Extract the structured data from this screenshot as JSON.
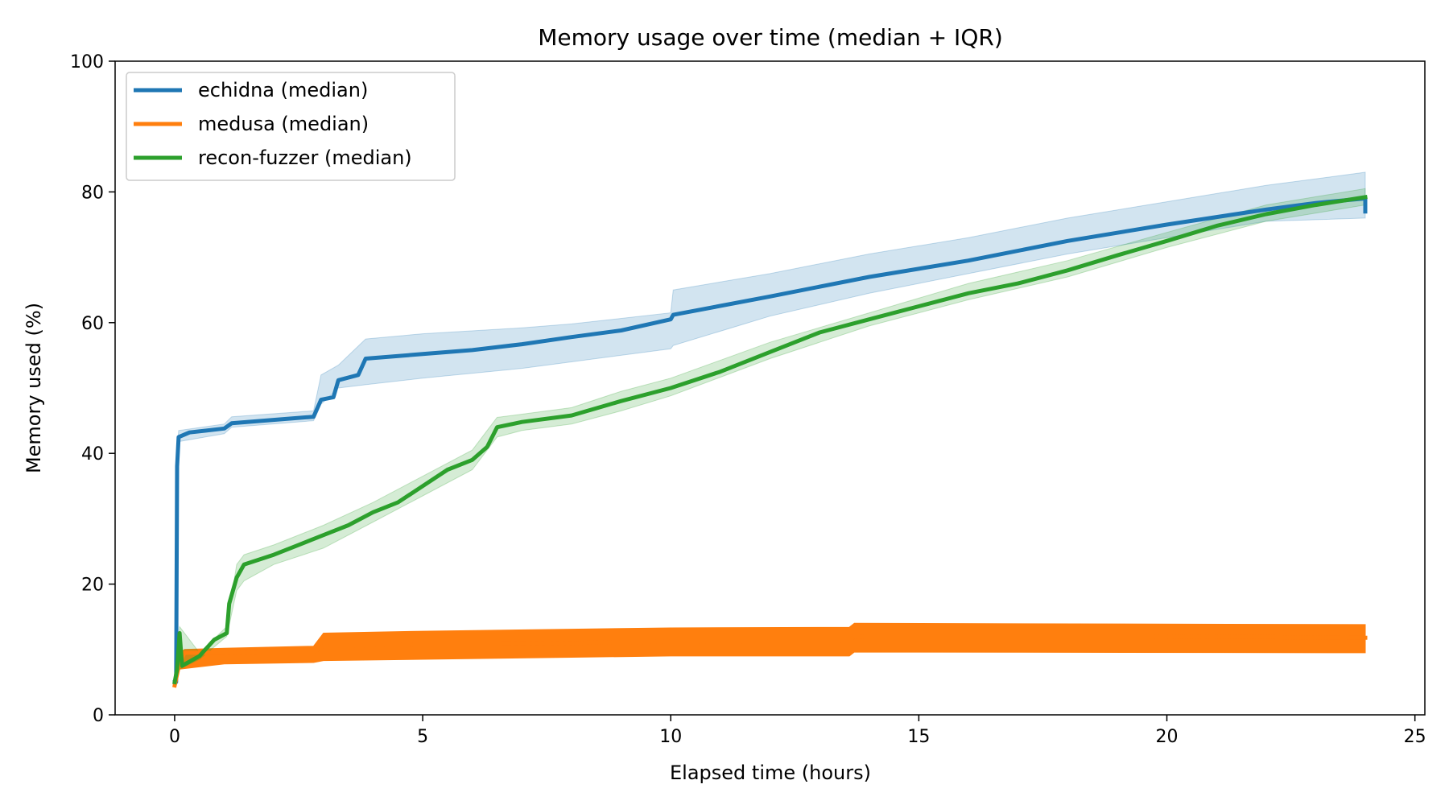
{
  "chart_data": {
    "type": "line",
    "title": "Memory usage over time (median + IQR)",
    "xlabel": "Elapsed time (hours)",
    "ylabel": "Memory used (%)",
    "xlim": [
      -1.2,
      25.2
    ],
    "ylim": [
      0,
      100
    ],
    "x_ticks": [
      0,
      5,
      10,
      15,
      20,
      25
    ],
    "y_ticks": [
      0,
      20,
      40,
      60,
      80,
      100
    ],
    "grid": false,
    "legend_position": "top-left",
    "series": [
      {
        "name": "echidna (median)",
        "color": "#1f77b4",
        "band_color": "#1f77b4",
        "points": [
          [
            0,
            5
          ],
          [
            0.03,
            5
          ],
          [
            0.05,
            38
          ],
          [
            0.08,
            42.5
          ],
          [
            0.3,
            43.2
          ],
          [
            1,
            43.8
          ],
          [
            1.15,
            44.6
          ],
          [
            2.8,
            45.6
          ],
          [
            2.95,
            48.2
          ],
          [
            3.2,
            48.6
          ],
          [
            3.3,
            51.2
          ],
          [
            3.7,
            52
          ],
          [
            3.85,
            54.5
          ],
          [
            5,
            55.2
          ],
          [
            6,
            55.8
          ],
          [
            7,
            56.7
          ],
          [
            8,
            57.8
          ],
          [
            9,
            58.8
          ],
          [
            10,
            60.5
          ],
          [
            10.05,
            61.2
          ],
          [
            12,
            64
          ],
          [
            14,
            67
          ],
          [
            16,
            69.5
          ],
          [
            18,
            72.5
          ],
          [
            20,
            75
          ],
          [
            22,
            77.3
          ],
          [
            23,
            78.3
          ],
          [
            24,
            79
          ],
          [
            24,
            77
          ]
        ],
        "q1": [
          [
            0,
            4.5
          ],
          [
            0.05,
            35
          ],
          [
            0.08,
            41.8
          ],
          [
            1,
            43
          ],
          [
            1.15,
            44
          ],
          [
            2.8,
            45
          ],
          [
            2.95,
            47.5
          ],
          [
            3.3,
            50
          ],
          [
            3.85,
            50.5
          ],
          [
            5,
            51.5
          ],
          [
            7,
            53
          ],
          [
            8,
            54
          ],
          [
            10,
            56
          ],
          [
            10.05,
            56.5
          ],
          [
            12,
            61
          ],
          [
            14,
            64.5
          ],
          [
            16,
            67.5
          ],
          [
            18,
            70.5
          ],
          [
            20,
            73
          ],
          [
            22,
            75.5
          ],
          [
            24,
            76
          ]
        ],
        "q3": [
          [
            0,
            5.5
          ],
          [
            0.05,
            40
          ],
          [
            0.08,
            43.5
          ],
          [
            1,
            44.5
          ],
          [
            1.15,
            45.6
          ],
          [
            2.8,
            46.5
          ],
          [
            2.95,
            52
          ],
          [
            3.3,
            53.5
          ],
          [
            3.85,
            57.5
          ],
          [
            5,
            58.3
          ],
          [
            7,
            59.2
          ],
          [
            8,
            59.8
          ],
          [
            10,
            61.5
          ],
          [
            10.05,
            65
          ],
          [
            12,
            67.5
          ],
          [
            14,
            70.5
          ],
          [
            16,
            73
          ],
          [
            18,
            76
          ],
          [
            20,
            78.5
          ],
          [
            22,
            81
          ],
          [
            24,
            83
          ]
        ]
      },
      {
        "name": "medusa (median)",
        "color": "#ff7f0e",
        "band_color": "#ff7f0e",
        "points": [
          [
            0,
            4.5
          ],
          [
            0.1,
            8
          ],
          [
            0.2,
            9.5
          ],
          [
            1,
            9.5
          ],
          [
            2.8,
            9.6
          ],
          [
            3,
            10.5
          ],
          [
            5,
            10.8
          ],
          [
            8,
            11
          ],
          [
            10,
            11.2
          ],
          [
            13.6,
            11.3
          ],
          [
            13.7,
            12
          ],
          [
            16,
            12.1
          ],
          [
            20,
            12
          ],
          [
            24,
            11.8
          ]
        ],
        "q1": [
          [
            0,
            4.5
          ],
          [
            0.1,
            7
          ],
          [
            1,
            7.8
          ],
          [
            2.8,
            8
          ],
          [
            3,
            8.3
          ],
          [
            5,
            8.5
          ],
          [
            8,
            8.8
          ],
          [
            10,
            9
          ],
          [
            13.6,
            9
          ],
          [
            13.7,
            9.6
          ],
          [
            24,
            9.5
          ]
        ],
        "q3": [
          [
            0,
            5
          ],
          [
            0.1,
            9.5
          ],
          [
            0.2,
            10
          ],
          [
            1,
            10.2
          ],
          [
            2.8,
            10.5
          ],
          [
            3,
            12.5
          ],
          [
            5,
            12.8
          ],
          [
            8,
            13.1
          ],
          [
            10,
            13.3
          ],
          [
            13.6,
            13.4
          ],
          [
            13.7,
            14
          ],
          [
            24,
            13.8
          ]
        ]
      },
      {
        "name": "recon-fuzzer (median)",
        "color": "#2ca02c",
        "band_color": "#2ca02c",
        "points": [
          [
            0,
            5
          ],
          [
            0.05,
            7
          ],
          [
            0.1,
            12.5
          ],
          [
            0.15,
            7.5
          ],
          [
            0.5,
            9
          ],
          [
            0.8,
            11.5
          ],
          [
            1.05,
            12.5
          ],
          [
            1.1,
            17
          ],
          [
            1.25,
            21
          ],
          [
            1.4,
            23
          ],
          [
            2,
            24.5
          ],
          [
            2.5,
            26
          ],
          [
            3,
            27.5
          ],
          [
            3.5,
            29
          ],
          [
            4,
            31
          ],
          [
            4.5,
            32.5
          ],
          [
            5,
            35
          ],
          [
            5.5,
            37.5
          ],
          [
            6,
            39
          ],
          [
            6.3,
            41
          ],
          [
            6.5,
            44
          ],
          [
            7,
            44.8
          ],
          [
            8,
            45.8
          ],
          [
            9,
            48
          ],
          [
            10,
            50
          ],
          [
            11,
            52.5
          ],
          [
            12,
            55.5
          ],
          [
            13,
            58.5
          ],
          [
            14,
            60.5
          ],
          [
            15,
            62.5
          ],
          [
            16,
            64.5
          ],
          [
            17,
            66
          ],
          [
            18,
            68
          ],
          [
            19,
            70.3
          ],
          [
            20,
            72.5
          ],
          [
            21,
            74.8
          ],
          [
            22,
            76.6
          ],
          [
            23,
            78
          ],
          [
            24,
            79.2
          ]
        ],
        "q1": [
          [
            0,
            4.5
          ],
          [
            0.1,
            7
          ],
          [
            0.5,
            8.5
          ],
          [
            1.05,
            12
          ],
          [
            1.25,
            19
          ],
          [
            1.4,
            20.5
          ],
          [
            2,
            23
          ],
          [
            3,
            25.5
          ],
          [
            4,
            29.5
          ],
          [
            5,
            33.5
          ],
          [
            6,
            37.5
          ],
          [
            6.5,
            42.5
          ],
          [
            7,
            43.5
          ],
          [
            8,
            44.5
          ],
          [
            9,
            46.5
          ],
          [
            10,
            48.8
          ],
          [
            12,
            54.5
          ],
          [
            14,
            59.5
          ],
          [
            16,
            63.5
          ],
          [
            18,
            67
          ],
          [
            20,
            71.5
          ],
          [
            22,
            75.5
          ],
          [
            24,
            78
          ]
        ],
        "q3": [
          [
            0,
            5.5
          ],
          [
            0.1,
            13.5
          ],
          [
            0.5,
            9.5
          ],
          [
            1.05,
            13.5
          ],
          [
            1.25,
            23
          ],
          [
            1.4,
            24.5
          ],
          [
            2,
            26
          ],
          [
            3,
            29
          ],
          [
            4,
            32.5
          ],
          [
            5,
            36.5
          ],
          [
            6,
            40.5
          ],
          [
            6.5,
            45.5
          ],
          [
            7,
            46
          ],
          [
            8,
            47
          ],
          [
            9,
            49.5
          ],
          [
            10,
            51.5
          ],
          [
            12,
            57
          ],
          [
            14,
            61.5
          ],
          [
            16,
            66
          ],
          [
            18,
            69.5
          ],
          [
            20,
            73.8
          ],
          [
            22,
            78
          ],
          [
            24,
            80.5
          ]
        ]
      }
    ]
  }
}
